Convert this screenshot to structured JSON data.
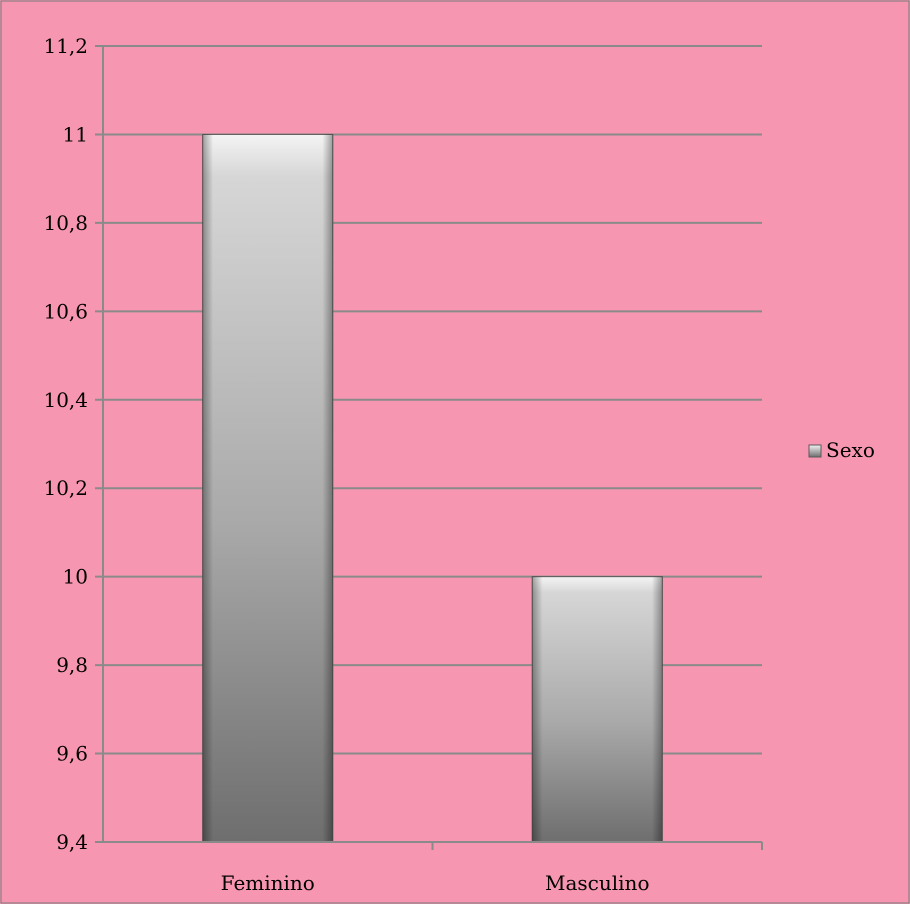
{
  "chart_data": {
    "type": "bar",
    "categories": [
      "Feminino",
      "Masculino"
    ],
    "series": [
      {
        "name": "Sexo",
        "values": [
          11,
          10
        ]
      }
    ],
    "xlabel": "",
    "ylabel": "",
    "ylim": [
      9.4,
      11.2
    ],
    "yticks": [
      "9,4",
      "9,6",
      "9,8",
      "10",
      "10,2",
      "10,4",
      "10,6",
      "10,8",
      "11",
      "11,2"
    ],
    "grid": true,
    "legend": "right",
    "colors": {
      "background": "#f796b1",
      "gridline": "#8a8a8a",
      "bar_light": "#f4f4f4",
      "bar_dark": "#6e6e6e"
    }
  }
}
